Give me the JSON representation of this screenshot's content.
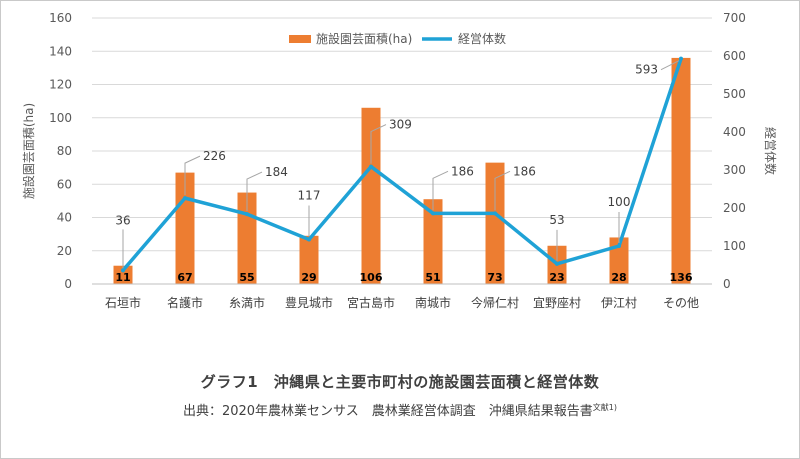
{
  "chart_data": {
    "type": "bar",
    "categories": [
      "石垣市",
      "名護市",
      "糸満市",
      "豊見城市",
      "宮古島市",
      "南城市",
      "今帰仁村",
      "宜野座村",
      "伊江村",
      "その他"
    ],
    "series": [
      {
        "name": "施設園芸面積(ha)",
        "type": "bar",
        "axis": "left",
        "color": "#ED7D31",
        "values": [
          11,
          67,
          55,
          29,
          106,
          51,
          73,
          23,
          28,
          136
        ]
      },
      {
        "name": "経営体数",
        "type": "line",
        "axis": "right",
        "color": "#1FA2D6",
        "values": [
          36,
          226,
          184,
          117,
          309,
          186,
          186,
          53,
          100,
          593
        ]
      }
    ],
    "ylabel_left": "施設園芸面積(ha)",
    "ylabel_right": "経営体数",
    "ylim_left": [
      0,
      160
    ],
    "ylim_right": [
      0,
      700
    ],
    "yticks_left": [
      "0",
      "20",
      "40",
      "60",
      "80",
      "100",
      "120",
      "140",
      "160"
    ],
    "yticks_right": [
      "0",
      "100",
      "200",
      "300",
      "400",
      "500",
      "600",
      "700"
    ],
    "grid": true,
    "legend_position": "top-center"
  },
  "caption": {
    "title": "グラフ1　沖縄県と主要市町村の施設園芸面積と経営体数",
    "source": "出典：2020年農林業センサス　農林業経営体調査　沖縄県結果報告書",
    "source_note": "文献1)"
  }
}
